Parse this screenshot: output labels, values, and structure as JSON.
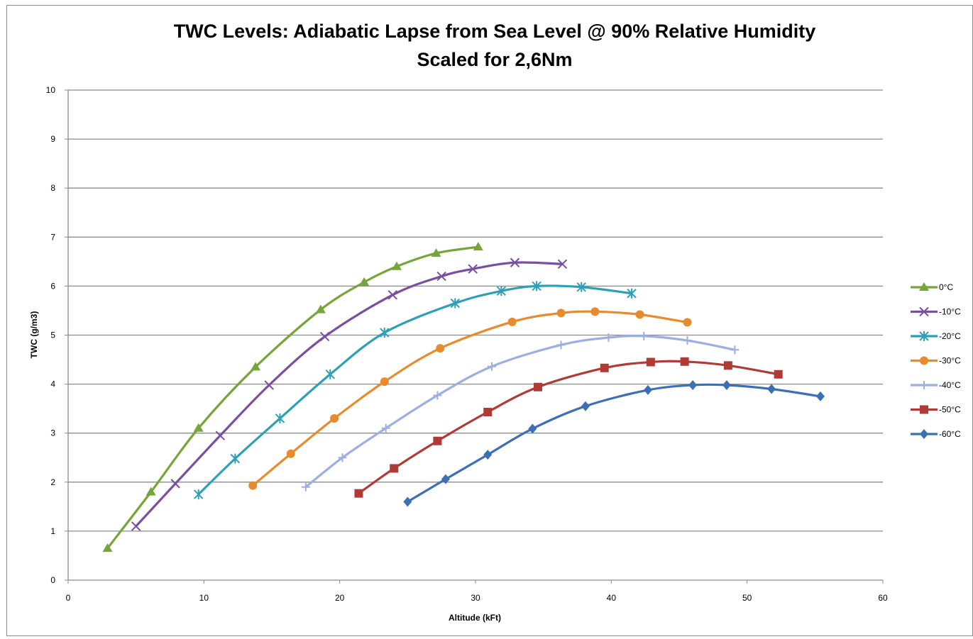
{
  "chart_data": {
    "type": "line",
    "title": "TWC Levels: Adiabatic Lapse from Sea Level @ 90% Relative Humidity",
    "subtitle": "Scaled for 2,6Nm",
    "xlabel": "Altitude (kFt)",
    "ylabel": "TWC (g/m3)",
    "xlim": [
      0,
      60
    ],
    "ylim": [
      0,
      10
    ],
    "xticks": [
      "0",
      "10",
      "20",
      "30",
      "40",
      "50",
      "60"
    ],
    "yticks": [
      "0",
      "1",
      "2",
      "3",
      "4",
      "5",
      "6",
      "7",
      "8",
      "9",
      "10"
    ],
    "grid": "horizontal",
    "legend_position": "right",
    "series": [
      {
        "name": "0°C",
        "color": "#77a43b",
        "marker": "triangle",
        "x": [
          2.9,
          6.1,
          9.6,
          13.8,
          18.6,
          21.8,
          24.2,
          27.1,
          30.2
        ],
        "y": [
          0.65,
          1.8,
          3.1,
          4.35,
          5.52,
          6.08,
          6.4,
          6.67,
          6.8
        ]
      },
      {
        "name": "-10°C",
        "color": "#7a4fa0",
        "marker": "x",
        "x": [
          5.0,
          7.9,
          11.2,
          14.8,
          18.9,
          23.9,
          27.5,
          29.8,
          32.9,
          36.4
        ],
        "y": [
          1.1,
          1.97,
          2.95,
          3.98,
          4.97,
          5.82,
          6.2,
          6.35,
          6.48,
          6.45
        ]
      },
      {
        "name": "-20°C",
        "color": "#2f9fb5",
        "marker": "asterisk",
        "x": [
          9.6,
          12.3,
          15.6,
          19.3,
          23.3,
          28.5,
          31.9,
          34.5,
          37.8,
          41.5
        ],
        "y": [
          1.75,
          2.48,
          3.3,
          4.2,
          5.05,
          5.65,
          5.9,
          6.0,
          5.98,
          5.85
        ]
      },
      {
        "name": "-30°C",
        "color": "#e88a2e",
        "marker": "circle",
        "x": [
          13.6,
          16.4,
          19.6,
          23.3,
          27.4,
          32.7,
          36.3,
          38.8,
          42.1,
          45.6
        ],
        "y": [
          1.93,
          2.58,
          3.3,
          4.05,
          4.73,
          5.27,
          5.45,
          5.48,
          5.42,
          5.26
        ]
      },
      {
        "name": "-40°C",
        "color": "#9daee0",
        "marker": "plus",
        "x": [
          17.5,
          20.2,
          23.4,
          27.2,
          31.2,
          36.3,
          39.8,
          42.4,
          45.6,
          49.1
        ],
        "y": [
          1.9,
          2.5,
          3.1,
          3.77,
          4.36,
          4.8,
          4.95,
          4.98,
          4.89,
          4.7
        ]
      },
      {
        "name": "-50°C",
        "color": "#b03b36",
        "marker": "square",
        "x": [
          21.4,
          24.0,
          27.2,
          30.9,
          34.6,
          39.5,
          42.9,
          45.4,
          48.6,
          52.3
        ],
        "y": [
          1.77,
          2.28,
          2.84,
          3.43,
          3.94,
          4.33,
          4.45,
          4.46,
          4.38,
          4.2
        ]
      },
      {
        "name": "-60°C",
        "color": "#3c6fb3",
        "marker": "diamond",
        "x": [
          25.0,
          27.8,
          30.9,
          34.2,
          38.1,
          42.7,
          46.0,
          48.5,
          51.8,
          55.4
        ],
        "y": [
          1.6,
          2.06,
          2.56,
          3.09,
          3.55,
          3.88,
          3.98,
          3.98,
          3.9,
          3.75
        ]
      }
    ]
  }
}
